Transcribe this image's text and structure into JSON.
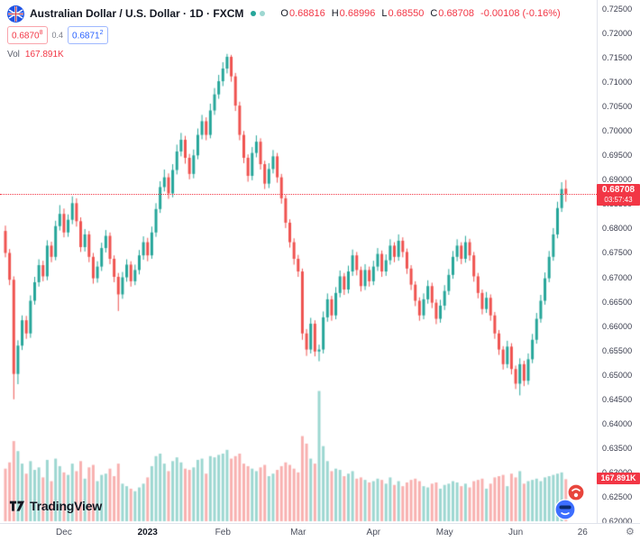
{
  "header": {
    "symbol_title": "Australian Dollar / U.S. Dollar · 1D · FXCM",
    "ohlc_items": [
      {
        "k": "O",
        "v": "0.68816"
      },
      {
        "k": "H",
        "v": "0.68996"
      },
      {
        "k": "L",
        "v": "0.68550"
      },
      {
        "k": "C",
        "v": "0.68708"
      }
    ],
    "change": "-0.00108 (-0.16%)",
    "bid": {
      "main": "0.6870",
      "sup": "8"
    },
    "spread": "0.4",
    "ask": {
      "main": "0.6871",
      "sup": "2"
    },
    "vol_label": "Vol",
    "vol_value": "167.891K"
  },
  "colors": {
    "up": "#26a69a",
    "down": "#ef5350",
    "up_vol": "rgba(38,166,154,0.45)",
    "down_vol": "rgba(239,83,80,0.45)",
    "last_price": "#f23645",
    "accent_blue": "#2962ff"
  },
  "price_axis": {
    "labels": [
      "0.72500",
      "0.72000",
      "0.71500",
      "0.71000",
      "0.70500",
      "0.70000",
      "0.69500",
      "0.69000",
      "0.68500",
      "0.68000",
      "0.67500",
      "0.67000",
      "0.66500",
      "0.66000",
      "0.65500",
      "0.65000",
      "0.64500",
      "0.64000",
      "0.63500",
      "0.63000",
      "0.62500",
      "0.62000"
    ],
    "last_price_tag": "0.68708",
    "countdown": "03:57:43",
    "vol_tag": "167.891K"
  },
  "logo_text": "TradingView",
  "icons": {
    "gear": "⚙"
  },
  "chart_data": {
    "type": "candlestick",
    "symbol": "AUD/USD",
    "timeframe": "1D",
    "exchange": "FXCM",
    "y_range": [
      0.62,
      0.725
    ],
    "price_step": 0.005,
    "volume_max_k": 540,
    "ticks": [
      {
        "label": "Dec",
        "i": 14
      },
      {
        "label": "2023",
        "i": 34,
        "bold": true
      },
      {
        "label": "Feb",
        "i": 52
      },
      {
        "label": "Mar",
        "i": 70
      },
      {
        "label": "Apr",
        "i": 88
      },
      {
        "label": "May",
        "i": 105
      },
      {
        "label": "Jun",
        "i": 122
      },
      {
        "label": "26",
        "i": 138
      }
    ],
    "candles": [
      [
        0.6795,
        0.6806,
        0.6741,
        0.675,
        210
      ],
      [
        0.675,
        0.6758,
        0.6684,
        0.6695,
        235
      ],
      [
        0.6695,
        0.6702,
        0.645,
        0.6502,
        320
      ],
      [
        0.6502,
        0.6571,
        0.6481,
        0.656,
        280
      ],
      [
        0.656,
        0.6622,
        0.6551,
        0.6612,
        230
      ],
      [
        0.6612,
        0.6621,
        0.6574,
        0.6585,
        190
      ],
      [
        0.6585,
        0.6663,
        0.6576,
        0.6652,
        240
      ],
      [
        0.6652,
        0.6701,
        0.6644,
        0.669,
        205
      ],
      [
        0.669,
        0.6737,
        0.6681,
        0.6725,
        215
      ],
      [
        0.6725,
        0.6734,
        0.6692,
        0.6702,
        175
      ],
      [
        0.6702,
        0.6776,
        0.6694,
        0.6765,
        245
      ],
      [
        0.6765,
        0.6773,
        0.6731,
        0.6742,
        160
      ],
      [
        0.6742,
        0.6816,
        0.6735,
        0.6805,
        250
      ],
      [
        0.6805,
        0.6848,
        0.6796,
        0.683,
        220
      ],
      [
        0.683,
        0.6841,
        0.6782,
        0.6792,
        195
      ],
      [
        0.6792,
        0.6829,
        0.6783,
        0.6818,
        185
      ],
      [
        0.6818,
        0.6866,
        0.6809,
        0.6852,
        230
      ],
      [
        0.6852,
        0.6862,
        0.6804,
        0.6815,
        200
      ],
      [
        0.6815,
        0.6823,
        0.6752,
        0.6762,
        240
      ],
      [
        0.6762,
        0.6799,
        0.6753,
        0.6788,
        170
      ],
      [
        0.6788,
        0.6795,
        0.6731,
        0.6742,
        215
      ],
      [
        0.6742,
        0.675,
        0.6687,
        0.6698,
        225
      ],
      [
        0.6698,
        0.6733,
        0.6689,
        0.6722,
        160
      ],
      [
        0.6722,
        0.6771,
        0.6713,
        0.676,
        185
      ],
      [
        0.676,
        0.6797,
        0.6751,
        0.6785,
        190
      ],
      [
        0.6785,
        0.6792,
        0.6727,
        0.6738,
        210
      ],
      [
        0.6738,
        0.6745,
        0.669,
        0.6701,
        180
      ],
      [
        0.6701,
        0.6709,
        0.6631,
        0.6665,
        230
      ],
      [
        0.6665,
        0.6711,
        0.6656,
        0.67,
        150
      ],
      [
        0.67,
        0.6737,
        0.6691,
        0.6726,
        140
      ],
      [
        0.6726,
        0.6733,
        0.6681,
        0.6692,
        130
      ],
      [
        0.6692,
        0.6726,
        0.6684,
        0.6715,
        120
      ],
      [
        0.6715,
        0.6756,
        0.6706,
        0.6745,
        135
      ],
      [
        0.6745,
        0.6784,
        0.6736,
        0.6772,
        150
      ],
      [
        0.6772,
        0.6781,
        0.6733,
        0.6745,
        175
      ],
      [
        0.6745,
        0.6804,
        0.6738,
        0.6792,
        220
      ],
      [
        0.6792,
        0.6852,
        0.6783,
        0.684,
        260
      ],
      [
        0.684,
        0.6897,
        0.6832,
        0.6885,
        270
      ],
      [
        0.6885,
        0.6921,
        0.6876,
        0.6905,
        230
      ],
      [
        0.6905,
        0.6913,
        0.6861,
        0.6872,
        200
      ],
      [
        0.6872,
        0.6932,
        0.6864,
        0.692,
        240
      ],
      [
        0.692,
        0.6972,
        0.6911,
        0.6958,
        255
      ],
      [
        0.6958,
        0.6996,
        0.6948,
        0.6982,
        235
      ],
      [
        0.6982,
        0.699,
        0.6933,
        0.6945,
        210
      ],
      [
        0.6945,
        0.6953,
        0.6901,
        0.6912,
        205
      ],
      [
        0.6912,
        0.6962,
        0.6903,
        0.695,
        215
      ],
      [
        0.695,
        0.7005,
        0.6942,
        0.6992,
        245
      ],
      [
        0.6992,
        0.7033,
        0.6983,
        0.702,
        250
      ],
      [
        0.702,
        0.7028,
        0.6981,
        0.6992,
        190
      ],
      [
        0.6992,
        0.7056,
        0.6985,
        0.7042,
        260
      ],
      [
        0.7042,
        0.7088,
        0.7033,
        0.7075,
        255
      ],
      [
        0.7075,
        0.7115,
        0.7066,
        0.7102,
        265
      ],
      [
        0.7102,
        0.7141,
        0.7092,
        0.7128,
        270
      ],
      [
        0.7128,
        0.7158,
        0.7118,
        0.7152,
        285
      ],
      [
        0.7152,
        0.7156,
        0.7101,
        0.7112,
        250
      ],
      [
        0.7112,
        0.7119,
        0.7041,
        0.7052,
        260
      ],
      [
        0.7052,
        0.706,
        0.6981,
        0.6992,
        270
      ],
      [
        0.6992,
        0.7,
        0.6934,
        0.6945,
        230
      ],
      [
        0.6945,
        0.6952,
        0.6896,
        0.6908,
        220
      ],
      [
        0.6908,
        0.6967,
        0.6899,
        0.6955,
        210
      ],
      [
        0.6955,
        0.6991,
        0.6946,
        0.6978,
        200
      ],
      [
        0.6978,
        0.6985,
        0.6921,
        0.6932,
        215
      ],
      [
        0.6932,
        0.6939,
        0.6881,
        0.6892,
        225
      ],
      [
        0.6892,
        0.6934,
        0.6883,
        0.6922,
        180
      ],
      [
        0.6922,
        0.6961,
        0.6913,
        0.6948,
        190
      ],
      [
        0.6948,
        0.6955,
        0.6894,
        0.6905,
        205
      ],
      [
        0.6905,
        0.6912,
        0.6851,
        0.6862,
        220
      ],
      [
        0.6862,
        0.6869,
        0.6801,
        0.6812,
        235
      ],
      [
        0.6812,
        0.6819,
        0.6761,
        0.6772,
        225
      ],
      [
        0.6772,
        0.678,
        0.6726,
        0.6738,
        210
      ],
      [
        0.6738,
        0.6746,
        0.6701,
        0.6712,
        195
      ],
      [
        0.6712,
        0.6718,
        0.6572,
        0.6585,
        340
      ],
      [
        0.6585,
        0.6594,
        0.6539,
        0.6552,
        310
      ],
      [
        0.6552,
        0.6617,
        0.6544,
        0.6605,
        250
      ],
      [
        0.6605,
        0.6612,
        0.6538,
        0.6548,
        230
      ],
      [
        0.6548,
        0.6562,
        0.6528,
        0.6552,
        520
      ],
      [
        0.6552,
        0.663,
        0.6544,
        0.6618,
        300
      ],
      [
        0.6618,
        0.6667,
        0.6609,
        0.6655,
        240
      ],
      [
        0.6655,
        0.6662,
        0.6611,
        0.6622,
        200
      ],
      [
        0.6622,
        0.668,
        0.6614,
        0.6668,
        210
      ],
      [
        0.6668,
        0.6714,
        0.6659,
        0.6702,
        205
      ],
      [
        0.6702,
        0.6709,
        0.6664,
        0.6675,
        180
      ],
      [
        0.6675,
        0.6724,
        0.6667,
        0.6712,
        190
      ],
      [
        0.6712,
        0.6757,
        0.6703,
        0.6745,
        200
      ],
      [
        0.6745,
        0.6752,
        0.6704,
        0.6715,
        170
      ],
      [
        0.6715,
        0.6722,
        0.6671,
        0.6682,
        175
      ],
      [
        0.6682,
        0.6727,
        0.6674,
        0.6715,
        165
      ],
      [
        0.6715,
        0.6722,
        0.6681,
        0.6692,
        155
      ],
      [
        0.6692,
        0.6734,
        0.6684,
        0.6722,
        160
      ],
      [
        0.6722,
        0.676,
        0.6713,
        0.6748,
        170
      ],
      [
        0.6748,
        0.6755,
        0.6701,
        0.6712,
        165
      ],
      [
        0.6712,
        0.6747,
        0.6703,
        0.6735,
        150
      ],
      [
        0.6735,
        0.6778,
        0.6726,
        0.6765,
        175
      ],
      [
        0.6765,
        0.6772,
        0.6731,
        0.6742,
        145
      ],
      [
        0.6742,
        0.6788,
        0.6734,
        0.6775,
        160
      ],
      [
        0.6775,
        0.6782,
        0.6741,
        0.6752,
        140
      ],
      [
        0.6752,
        0.6759,
        0.6707,
        0.6718,
        155
      ],
      [
        0.6718,
        0.6725,
        0.6674,
        0.6685,
        165
      ],
      [
        0.6685,
        0.6692,
        0.6641,
        0.6652,
        170
      ],
      [
        0.6652,
        0.6659,
        0.6611,
        0.6622,
        160
      ],
      [
        0.6622,
        0.6667,
        0.6614,
        0.6655,
        140
      ],
      [
        0.6655,
        0.6694,
        0.6646,
        0.6682,
        135
      ],
      [
        0.6682,
        0.6689,
        0.6637,
        0.6648,
        150
      ],
      [
        0.6648,
        0.6655,
        0.6604,
        0.6615,
        155
      ],
      [
        0.6615,
        0.6654,
        0.6607,
        0.6642,
        130
      ],
      [
        0.6642,
        0.6684,
        0.6633,
        0.6672,
        145
      ],
      [
        0.6672,
        0.6717,
        0.6664,
        0.6705,
        150
      ],
      [
        0.6705,
        0.6754,
        0.6697,
        0.6742,
        160
      ],
      [
        0.6742,
        0.6778,
        0.6733,
        0.6765,
        155
      ],
      [
        0.6765,
        0.6772,
        0.6727,
        0.6738,
        140
      ],
      [
        0.6738,
        0.6785,
        0.673,
        0.6772,
        150
      ],
      [
        0.6772,
        0.6779,
        0.6734,
        0.6745,
        135
      ],
      [
        0.6745,
        0.6752,
        0.6691,
        0.6702,
        160
      ],
      [
        0.6702,
        0.6709,
        0.6657,
        0.6668,
        165
      ],
      [
        0.6668,
        0.6675,
        0.6624,
        0.6635,
        170
      ],
      [
        0.6635,
        0.667,
        0.6627,
        0.6658,
        130
      ],
      [
        0.6658,
        0.6665,
        0.6611,
        0.6622,
        150
      ],
      [
        0.6622,
        0.6629,
        0.6574,
        0.6585,
        175
      ],
      [
        0.6585,
        0.6592,
        0.6541,
        0.6552,
        180
      ],
      [
        0.6552,
        0.6559,
        0.6511,
        0.6522,
        185
      ],
      [
        0.6522,
        0.657,
        0.6514,
        0.6558,
        140
      ],
      [
        0.6558,
        0.6565,
        0.6501,
        0.6512,
        190
      ],
      [
        0.6512,
        0.6519,
        0.6471,
        0.6482,
        175
      ],
      [
        0.6482,
        0.6534,
        0.6458,
        0.6522,
        200
      ],
      [
        0.6522,
        0.6529,
        0.6477,
        0.6488,
        150
      ],
      [
        0.6488,
        0.6544,
        0.648,
        0.6532,
        160
      ],
      [
        0.6532,
        0.6584,
        0.6524,
        0.6572,
        165
      ],
      [
        0.6572,
        0.6627,
        0.6564,
        0.6615,
        170
      ],
      [
        0.6615,
        0.6664,
        0.6607,
        0.6652,
        160
      ],
      [
        0.6652,
        0.671,
        0.6644,
        0.6698,
        175
      ],
      [
        0.6698,
        0.6754,
        0.669,
        0.6742,
        180
      ],
      [
        0.6742,
        0.6801,
        0.6734,
        0.6788,
        185
      ],
      [
        0.6788,
        0.6855,
        0.678,
        0.6842,
        190
      ],
      [
        0.6842,
        0.6895,
        0.6834,
        0.6881,
        195
      ],
      [
        0.68816,
        0.68996,
        0.6855,
        0.68708,
        167.891
      ]
    ]
  }
}
